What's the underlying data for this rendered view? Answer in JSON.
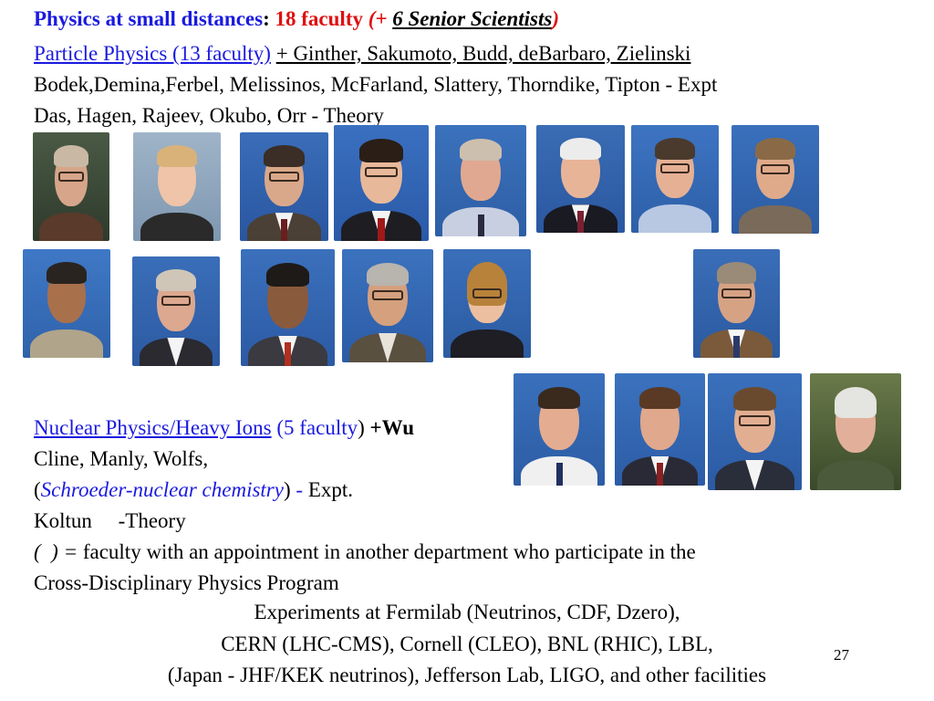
{
  "header": {
    "title": "Physics at small distances",
    "colon": ":",
    "faculty_count": "18 faculty",
    "paren_open": "(+",
    "senior": "6 Senior Scientists",
    "paren_close": ")"
  },
  "particle": {
    "heading": "Particle Physics   (13 faculty)",
    "plus_names": "+ Ginther, Sakumoto, Budd, deBarbaro, Zielinski",
    "expt_line": "Bodek,Demina,Ferbel, Melissinos, McFarland, Slattery, Thorndike, Tipton - Expt",
    "theory_line": "Das, Hagen, Rajeev, Okubo, Orr - Theory"
  },
  "nuclear": {
    "heading": "Nuclear Physics/Heavy Ions",
    "count": "(5 faculty",
    "count_close": ")",
    "plus": "+Wu",
    "names": "Cline, Manly, Wolfs,",
    "paren_open": "(",
    "schroeder": "Schroeder-nuclear chemistry",
    "paren_close": ")",
    "dash": " - ",
    "expt": "Expt.",
    "theory": "Koltun     -Theory"
  },
  "note": {
    "symbol": "(  ) =",
    "text1": "faculty with an appointment in another department who participate in the",
    "text2": "Cross-Disciplinary Physics Program"
  },
  "experiments": {
    "line1": "Experiments at Fermilab (Neutrinos, CDF, Dzero),",
    "line2": "CERN (LHC-CMS),  Cornell (CLEO),  BNL (RHIC), LBL,",
    "line3": "(Japan - JHF/KEK neutrinos), Jefferson Lab, LIGO, and other facilities"
  },
  "page_number": "27",
  "colors": {
    "blue": "#1a1adf",
    "red": "#e01010"
  }
}
